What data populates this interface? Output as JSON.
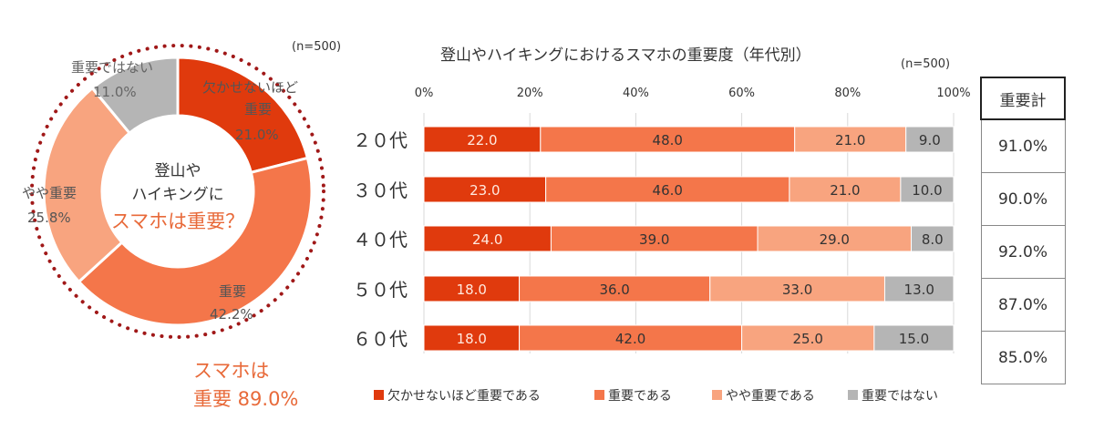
{
  "colors": {
    "essential": "#E03A0D",
    "important": "#F4764A",
    "somewhat": "#F8A47F",
    "not": "#B5B5B5",
    "dotted_ring": "#A01818",
    "accent_text": "#E86A3A"
  },
  "donut": {
    "n_label": "(n=500)",
    "center_line1": "登山や",
    "center_line2": "ハイキングに",
    "center_line3": "スマホは重要？",
    "summary_line1": "スマホは",
    "summary_line2": "重要 89.0%",
    "slices": [
      {
        "label": "欠かせないほど",
        "label2": "重要",
        "value_text": "21.0%"
      },
      {
        "label": "重要",
        "value_text": "42.2%"
      },
      {
        "label": "やや重要",
        "value_text": "25.8%"
      },
      {
        "label": "重要ではない",
        "value_text": "11.0%"
      }
    ]
  },
  "bars": {
    "title": "登山やハイキングにおけるスマホの重要度（年代別）",
    "n_label": "(n=500)",
    "x_ticks": [
      "0%",
      "20%",
      "40%",
      "60%",
      "80%",
      "100%"
    ],
    "legend": [
      "欠かせないほど重要である",
      "重要である",
      "やや重要である",
      "重要ではない"
    ]
  },
  "total": {
    "header": "重要計",
    "values": [
      "91.0%",
      "90.0%",
      "92.0%",
      "87.0%",
      "85.0%"
    ]
  },
  "chart_data": [
    {
      "type": "pie",
      "categories": [
        "欠かせないほど重要",
        "重要",
        "やや重要",
        "重要ではない"
      ],
      "values": [
        21.0,
        42.2,
        25.8,
        11.0
      ]
    },
    {
      "type": "bar",
      "orientation": "horizontal",
      "stacked": true,
      "title": "登山やハイキングにおけるスマホの重要度（年代別）",
      "categories": [
        "２０代",
        "３０代",
        "４０代",
        "５０代",
        "６０代"
      ],
      "xlim": [
        0,
        100
      ],
      "grid": true,
      "legend_position": "bottom",
      "series": [
        {
          "name": "欠かせないほど重要である",
          "values": [
            22.0,
            23.0,
            24.0,
            18.0,
            18.0
          ]
        },
        {
          "name": "重要である",
          "values": [
            48.0,
            46.0,
            39.0,
            36.0,
            42.0
          ]
        },
        {
          "name": "やや重要である",
          "values": [
            21.0,
            21.0,
            29.0,
            33.0,
            25.0
          ]
        },
        {
          "name": "重要ではない",
          "values": [
            9.0,
            10.0,
            8.0,
            13.0,
            15.0
          ]
        }
      ]
    }
  ]
}
